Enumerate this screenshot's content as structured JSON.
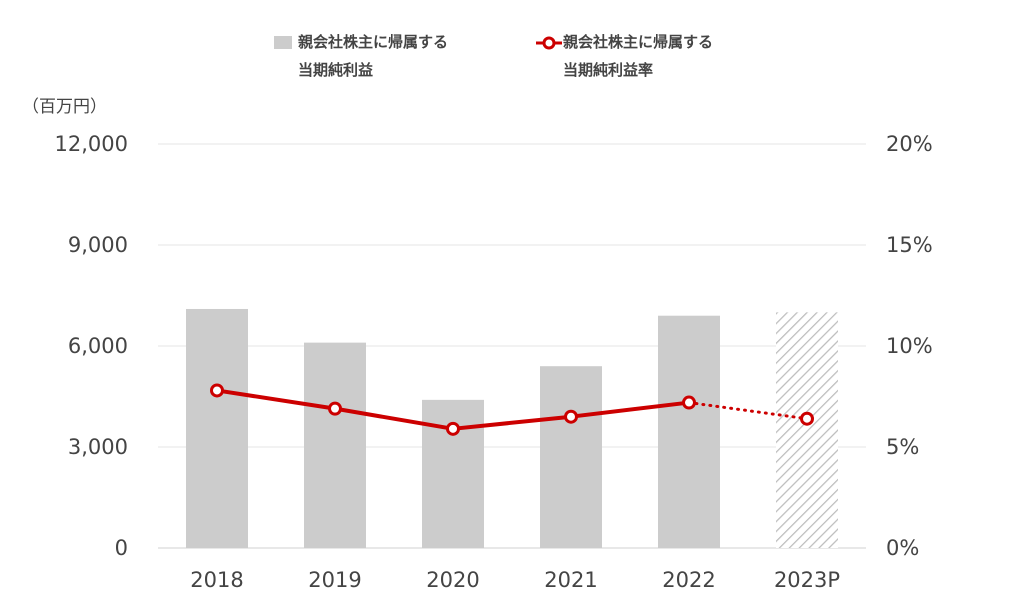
{
  "legend": {
    "bar_label_line1": "親会社株主に帰属する",
    "bar_label_line2": "当期純利益",
    "line_label_line1": "親会社株主に帰属する",
    "line_label_line2": "当期純利益率"
  },
  "unit_label": "（百万円）",
  "colors": {
    "bar": "#cccccc",
    "line": "#cc0000",
    "hatch": "#bdbdbd",
    "grid": "#e6e6e6"
  },
  "chart_data": {
    "type": "bar",
    "categories": [
      "2018",
      "2019",
      "2020",
      "2021",
      "2022",
      "2023P"
    ],
    "series": [
      {
        "name": "親会社株主に帰属する当期純利益",
        "axis": "left",
        "values": [
          7100,
          6100,
          4400,
          5400,
          6900,
          7000
        ],
        "forecast_from_index": 5
      },
      {
        "name": "親会社株主に帰属する当期純利益率",
        "axis": "right",
        "type": "line",
        "values": [
          7.8,
          6.9,
          5.9,
          6.5,
          7.2,
          6.4
        ],
        "forecast_from_index": 5
      }
    ],
    "ylim_left": [
      0,
      12000
    ],
    "ylim_right": [
      0,
      20
    ],
    "yticks_left": [
      "0",
      "3,000",
      "6,000",
      "9,000",
      "12,000"
    ],
    "yticks_right": [
      "0%",
      "5%",
      "10%",
      "15%",
      "20%"
    ],
    "ylabel_left": "（百万円）",
    "grid": true,
    "legend_position": "top"
  }
}
